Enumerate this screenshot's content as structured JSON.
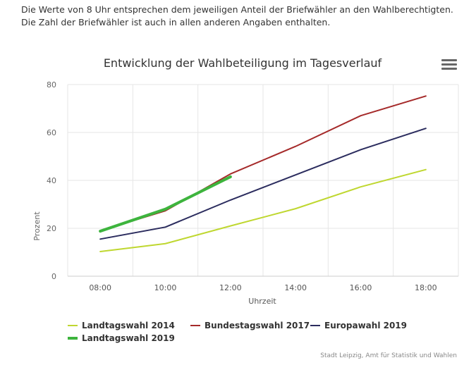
{
  "intro_text": "Die Werte von 8 Uhr entsprechen dem jeweiligen Anteil der Briefwähler an den Wahlberechtigten. Die Zahl der Briefwähler ist auch in allen anderen Angaben enthalten.",
  "menu_icon": "hamburger-menu-icon",
  "chart_data": {
    "type": "line",
    "title": "Entwicklung der Wahlbeteiligung im Tagesverlauf",
    "xlabel": "Uhrzeit",
    "ylabel": "Prozent",
    "categories": [
      "08:00",
      "10:00",
      "12:00",
      "14:00",
      "16:00",
      "18:00"
    ],
    "ylim": [
      0,
      80
    ],
    "yticks": [
      0,
      20,
      40,
      60,
      80
    ],
    "grid": true,
    "legend_position": "bottom",
    "series": [
      {
        "name": "Landtagswahl 2014",
        "color": "#bfd730",
        "values": [
          10.3,
          13.6,
          21.0,
          28.2,
          37.3,
          44.5
        ]
      },
      {
        "name": "Bundestagswahl 2017",
        "color": "#a52a2a",
        "values": [
          19.0,
          27.3,
          42.7,
          54.2,
          67.0,
          75.2
        ]
      },
      {
        "name": "Europawahl 2019",
        "color": "#2b2c5e",
        "values": [
          15.5,
          20.5,
          31.8,
          42.3,
          52.8,
          61.7
        ]
      },
      {
        "name": "Landtagswahl 2019",
        "color": "#3db43d",
        "values": [
          18.8,
          28.0,
          41.5,
          null,
          null,
          null
        ]
      }
    ],
    "credits": "Stadt Leipzig, Amt für Statistik und Wahlen"
  }
}
